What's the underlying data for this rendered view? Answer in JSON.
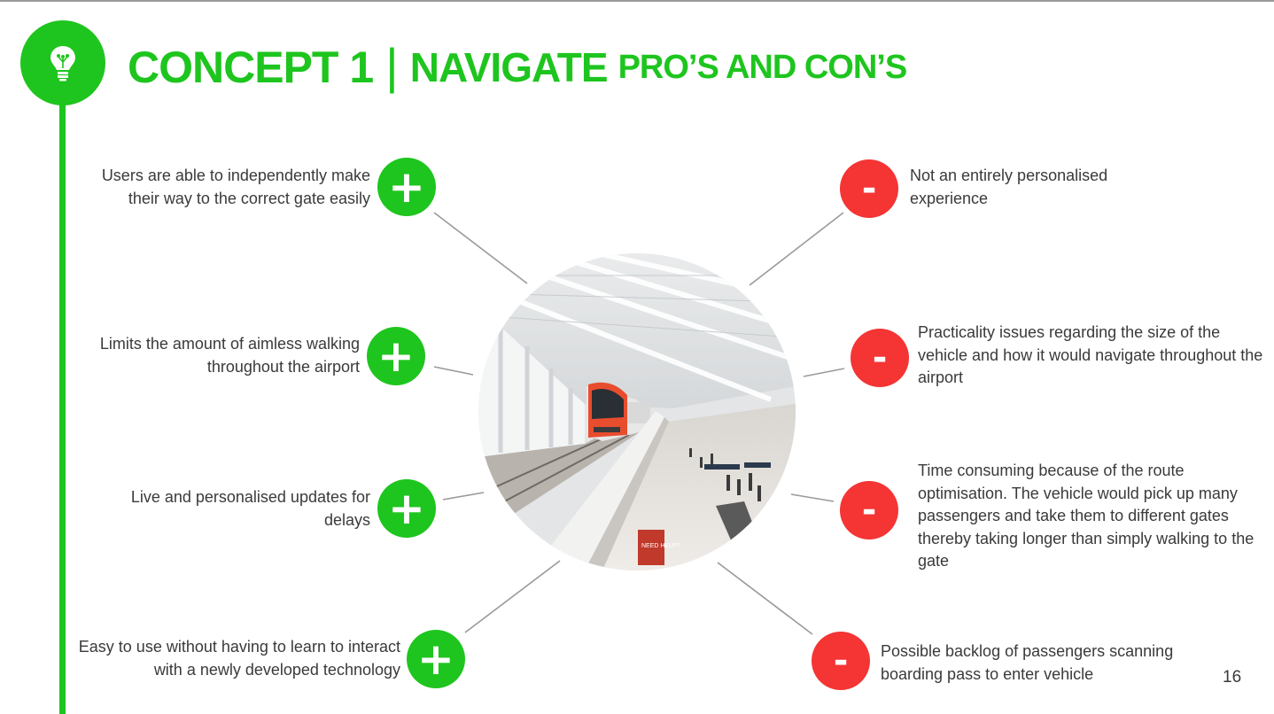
{
  "slide": {
    "title_part1": "CONCEPT 1",
    "title_separator": "|",
    "title_part2": "NAVIGATE",
    "title_part3": "PRO’S AND CON’S",
    "page_number": "16",
    "icon": "lightbulb-icon",
    "accent_color": "#1ec51e",
    "negative_color": "#f53434",
    "image": "airport-train-photo"
  },
  "pros": [
    {
      "symbol": "+",
      "text": "Users are able to independently make their way to the correct gate easily"
    },
    {
      "symbol": "+",
      "text": "Limits the amount of aimless walking throughout the airport"
    },
    {
      "symbol": "+",
      "text": "Live and personalised updates for delays"
    },
    {
      "symbol": "+",
      "text": "Easy to use without having to learn to interact with a newly developed technology"
    }
  ],
  "cons": [
    {
      "symbol": "-",
      "text": "Not an entirely personalised experience"
    },
    {
      "symbol": "-",
      "text": "Practicality issues regarding the size of the vehicle and how it would navigate throughout the airport"
    },
    {
      "symbol": "-",
      "text": "Time consuming because of the route optimisation. The vehicle would pick up many passengers and take them to different gates thereby taking longer than simply walking to the gate"
    },
    {
      "symbol": "-",
      "text": "Possible backlog of passengers scanning boarding pass to enter vehicle"
    }
  ],
  "photo_signs": [
    "NEED HELP?"
  ]
}
